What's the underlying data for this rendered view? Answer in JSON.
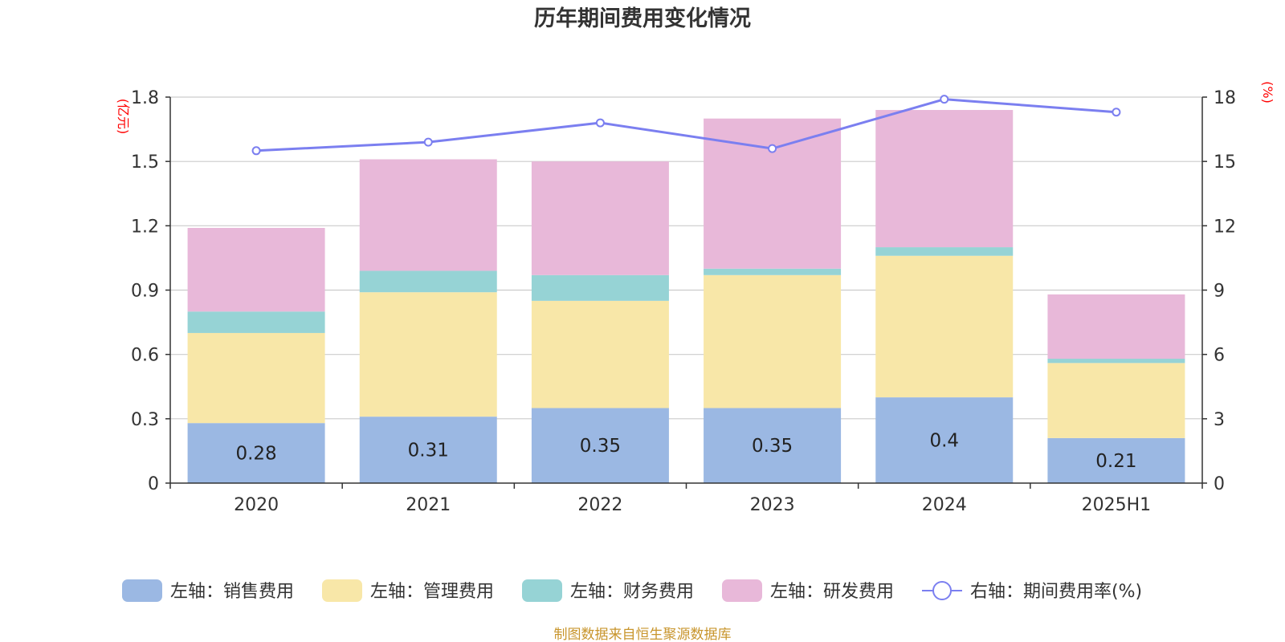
{
  "chart_data": {
    "type": "bar",
    "stacked": true,
    "title": "历年期间费用变化情况",
    "categories": [
      "2020",
      "2021",
      "2022",
      "2023",
      "2024",
      "2025H1"
    ],
    "left_axis": {
      "unit": "(亿元)",
      "ylim": [
        0,
        1.8
      ],
      "ticks": [
        "0",
        "0.3",
        "0.6",
        "0.9",
        "1.2",
        "1.5",
        "1.8"
      ]
    },
    "right_axis": {
      "unit": "(%)",
      "ylim": [
        0,
        18
      ],
      "ticks": [
        "0",
        "3",
        "6",
        "9",
        "12",
        "15",
        "18"
      ]
    },
    "series": [
      {
        "name": "左轴：销售费用",
        "axis": "left",
        "color": "#9bb8e3",
        "values": [
          0.28,
          0.31,
          0.35,
          0.35,
          0.4,
          0.21
        ],
        "data_labels": [
          "0.28",
          "0.31",
          "0.35",
          "0.35",
          "0.4",
          "0.21"
        ]
      },
      {
        "name": "左轴：管理费用",
        "axis": "left",
        "color": "#f8e7a8",
        "values": [
          0.42,
          0.58,
          0.5,
          0.62,
          0.66,
          0.35
        ]
      },
      {
        "name": "左轴：财务费用",
        "axis": "left",
        "color": "#96d3d5",
        "values": [
          0.1,
          0.1,
          0.12,
          0.03,
          0.04,
          0.02
        ]
      },
      {
        "name": "左轴：研发费用",
        "axis": "left",
        "color": "#e8b8d9",
        "values": [
          0.39,
          0.52,
          0.53,
          0.7,
          0.64,
          0.3
        ]
      },
      {
        "name": "右轴：期间费用率(%)",
        "axis": "right",
        "type": "line",
        "color": "#7b7ff0",
        "values": [
          15.5,
          15.9,
          16.8,
          15.6,
          17.9,
          17.3
        ]
      }
    ],
    "legend_position": "bottom",
    "grid": true
  },
  "source_note": "制图数据来自恒生聚源数据库"
}
